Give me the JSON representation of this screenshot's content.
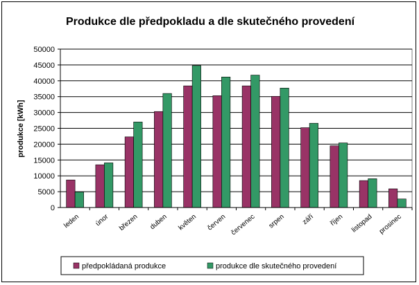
{
  "chart_data": {
    "type": "bar",
    "title": "Produkce dle předpokladu a  dle skutečného provedení",
    "xlabel": "",
    "ylabel": "produkce [kWh]",
    "ylim": [
      0,
      50000
    ],
    "ytick_step": 5000,
    "grid": true,
    "legend_position": "bottom",
    "categories": [
      "leden",
      "únor",
      "březen",
      "duben",
      "květen",
      "červen",
      "červenec",
      "srpen",
      "září",
      "říjen",
      "listopad",
      "prosinec"
    ],
    "series": [
      {
        "name": "předpokládaná produkce",
        "color": "#993366",
        "values": [
          8700,
          13500,
          22300,
          30300,
          38400,
          35300,
          38400,
          35100,
          25200,
          19500,
          8500,
          5900
        ]
      },
      {
        "name": "produkce dle skutečného provedení",
        "color": "#339966",
        "values": [
          4900,
          14100,
          27000,
          36000,
          44800,
          41200,
          41800,
          37700,
          26600,
          20400,
          9100,
          2700
        ]
      }
    ]
  }
}
